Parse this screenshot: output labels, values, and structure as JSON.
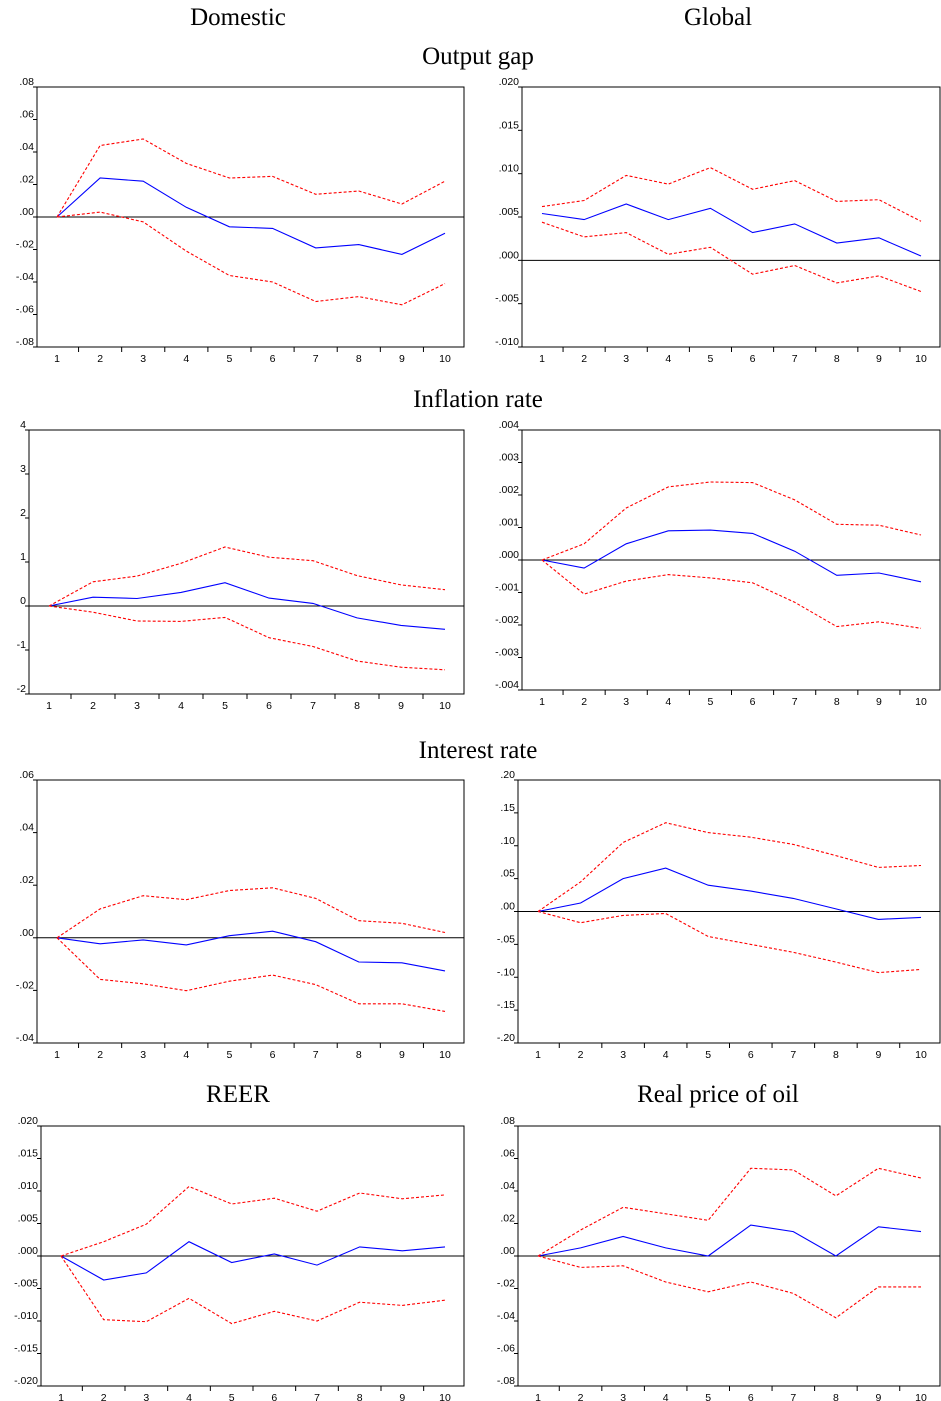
{
  "columns": {
    "left": "Domestic",
    "right": "Global"
  },
  "rows": {
    "output_gap": "Output gap",
    "inflation": "Inflation rate",
    "interest": "Interest rate",
    "reer": "REER",
    "oil": "Real price of oil"
  },
  "colors": {
    "response": "#0000ff",
    "band": "#ff0000",
    "zero_line": "#000000"
  },
  "chart_data": [
    {
      "id": "dom_output",
      "type": "line",
      "title": "",
      "x": [
        1,
        2,
        3,
        4,
        5,
        6,
        7,
        8,
        9,
        10
      ],
      "ylim": [
        -0.08,
        0.08
      ],
      "ytick_values": [
        -0.08,
        -0.06,
        -0.04,
        -0.02,
        0,
        0.02,
        0.04,
        0.06,
        0.08
      ],
      "yticks": [
        ".08",
        ".06",
        ".04",
        ".02",
        ".00",
        "-.02",
        "-.04",
        "-.06",
        "-.08"
      ],
      "series": [
        {
          "role": "response",
          "values": [
            0.0,
            0.024,
            0.022,
            0.006,
            -0.006,
            -0.007,
            -0.019,
            -0.017,
            -0.023,
            -0.01
          ]
        },
        {
          "role": "upper",
          "values": [
            0.0,
            0.044,
            0.048,
            0.033,
            0.024,
            0.025,
            0.014,
            0.016,
            0.008,
            0.022
          ]
        },
        {
          "role": "lower",
          "values": [
            0.0,
            0.003,
            -0.003,
            -0.021,
            -0.036,
            -0.04,
            -0.052,
            -0.049,
            -0.054,
            -0.041
          ]
        }
      ]
    },
    {
      "id": "glob_output",
      "type": "line",
      "title": "",
      "x": [
        1,
        2,
        3,
        4,
        5,
        6,
        7,
        8,
        9,
        10
      ],
      "ylim": [
        -0.01,
        0.02
      ],
      "ytick_values": [
        -0.01,
        -0.005,
        0,
        0.005,
        0.01,
        0.015,
        0.02
      ],
      "yticks": [
        ".020",
        ".015",
        ".010",
        ".005",
        ".000",
        "-.005",
        "-.010"
      ],
      "series": [
        {
          "role": "response",
          "values": [
            0.0054,
            0.0047,
            0.0065,
            0.0047,
            0.006,
            0.0032,
            0.0042,
            0.002,
            0.0026,
            0.0005
          ]
        },
        {
          "role": "upper",
          "values": [
            0.0062,
            0.0069,
            0.0098,
            0.0088,
            0.0107,
            0.0082,
            0.0092,
            0.0068,
            0.007,
            0.0045
          ]
        },
        {
          "role": "lower",
          "values": [
            0.0044,
            0.0027,
            0.0032,
            0.0007,
            0.0015,
            -0.0016,
            -0.0006,
            -0.0026,
            -0.0018,
            -0.0036
          ]
        }
      ]
    },
    {
      "id": "dom_inflation",
      "type": "line",
      "title": "",
      "x": [
        1,
        2,
        3,
        4,
        5,
        6,
        7,
        8,
        9,
        10
      ],
      "ylim": [
        -2,
        4
      ],
      "ytick_values": [
        -2,
        -1,
        0,
        1,
        2,
        3,
        4
      ],
      "yticks": [
        "4",
        "3",
        "2",
        "1",
        "0",
        "-1",
        "-2"
      ],
      "series": [
        {
          "role": "response",
          "values": [
            0.0,
            0.2,
            0.17,
            0.31,
            0.53,
            0.18,
            0.06,
            -0.27,
            -0.44,
            -0.53
          ]
        },
        {
          "role": "upper",
          "values": [
            0.0,
            0.55,
            0.68,
            0.97,
            1.34,
            1.11,
            1.03,
            0.69,
            0.48,
            0.37
          ]
        },
        {
          "role": "lower",
          "values": [
            0.0,
            -0.14,
            -0.34,
            -0.35,
            -0.26,
            -0.72,
            -0.92,
            -1.25,
            -1.39,
            -1.45
          ]
        }
      ]
    },
    {
      "id": "glob_inflation",
      "type": "line",
      "title": "",
      "x": [
        1,
        2,
        3,
        4,
        5,
        6,
        7,
        8,
        9,
        10
      ],
      "ylim": [
        -0.004,
        0.004
      ],
      "ytick_values": [
        -0.004,
        -0.003,
        -0.002,
        -0.001,
        0,
        0.001,
        0.002,
        0.003,
        0.004
      ],
      "yticks": [
        ".004",
        ".003",
        ".002",
        ".001",
        ".000",
        "-.001",
        "-.002",
        "-.003",
        "-.004"
      ],
      "series": [
        {
          "role": "response",
          "values": [
            0.0,
            -0.00025,
            0.0005,
            0.0009,
            0.00092,
            0.00082,
            0.00027,
            -0.00047,
            -0.0004,
            -0.00067
          ]
        },
        {
          "role": "upper",
          "values": [
            0.0,
            0.0005,
            0.0016,
            0.00225,
            0.0024,
            0.00238,
            0.00185,
            0.0011,
            0.00107,
            0.00077
          ]
        },
        {
          "role": "lower",
          "values": [
            0.0,
            -0.00105,
            -0.00065,
            -0.00045,
            -0.00055,
            -0.0007,
            -0.0013,
            -0.00205,
            -0.0019,
            -0.0021
          ]
        }
      ]
    },
    {
      "id": "dom_interest",
      "type": "line",
      "title": "",
      "x": [
        1,
        2,
        3,
        4,
        5,
        6,
        7,
        8,
        9,
        10
      ],
      "ylim": [
        -0.04,
        0.06
      ],
      "ytick_values": [
        -0.04,
        -0.02,
        0,
        0.02,
        0.04,
        0.06
      ],
      "yticks": [
        ".06",
        ".04",
        ".02",
        ".00",
        "-.02",
        "-.04"
      ],
      "series": [
        {
          "role": "response",
          "values": [
            0.0,
            -0.0023,
            -0.0008,
            -0.0027,
            0.0008,
            0.0025,
            -0.0015,
            -0.0092,
            -0.0095,
            -0.0126
          ]
        },
        {
          "role": "upper",
          "values": [
            0.0,
            0.011,
            0.016,
            0.0145,
            0.018,
            0.019,
            0.015,
            0.0065,
            0.0055,
            0.002
          ]
        },
        {
          "role": "lower",
          "values": [
            0.0,
            -0.0158,
            -0.0175,
            -0.0201,
            -0.0165,
            -0.0142,
            -0.0178,
            -0.0251,
            -0.0251,
            -0.028
          ]
        }
      ]
    },
    {
      "id": "glob_interest",
      "type": "line",
      "title": "",
      "x": [
        1,
        2,
        3,
        4,
        5,
        6,
        7,
        8,
        9,
        10
      ],
      "ylim": [
        -0.2,
        0.2
      ],
      "ytick_values": [
        -0.2,
        -0.15,
        -0.1,
        -0.05,
        0,
        0.05,
        0.1,
        0.15,
        0.2
      ],
      "yticks": [
        ".20",
        ".15",
        ".10",
        ".05",
        ".00",
        "-.05",
        "-.10",
        "-.15",
        "-.20"
      ],
      "series": [
        {
          "role": "response",
          "values": [
            0.0,
            0.013,
            0.05,
            0.066,
            0.04,
            0.031,
            0.02,
            0.004,
            -0.012,
            -0.009
          ]
        },
        {
          "role": "upper",
          "values": [
            0.0,
            0.045,
            0.105,
            0.135,
            0.12,
            0.113,
            0.102,
            0.085,
            0.067,
            0.07
          ]
        },
        {
          "role": "lower",
          "values": [
            0.0,
            -0.017,
            -0.006,
            -0.003,
            -0.038,
            -0.05,
            -0.062,
            -0.077,
            -0.093,
            -0.088
          ]
        }
      ]
    },
    {
      "id": "dom_reer",
      "type": "line",
      "title": "",
      "x": [
        1,
        2,
        3,
        4,
        5,
        6,
        7,
        8,
        9,
        10
      ],
      "ylim": [
        -0.02,
        0.02
      ],
      "ytick_values": [
        -0.02,
        -0.015,
        -0.01,
        -0.005,
        0,
        0.005,
        0.01,
        0.015,
        0.02
      ],
      "yticks": [
        ".020",
        ".015",
        ".010",
        ".005",
        ".000",
        "-.005",
        "-.010",
        "-.015",
        "-.020"
      ],
      "series": [
        {
          "role": "response",
          "values": [
            0.0,
            -0.0037,
            -0.0026,
            0.0022,
            -0.001,
            0.0003,
            -0.0014,
            0.0014,
            0.0008,
            0.0014
          ]
        },
        {
          "role": "upper",
          "values": [
            0.0,
            0.0022,
            0.0049,
            0.0107,
            0.008,
            0.0089,
            0.0069,
            0.0097,
            0.0088,
            0.0094
          ]
        },
        {
          "role": "lower",
          "values": [
            0.0,
            -0.0098,
            -0.0101,
            -0.0065,
            -0.0104,
            -0.0085,
            -0.01,
            -0.0071,
            -0.0076,
            -0.0068
          ]
        }
      ]
    },
    {
      "id": "glob_oil",
      "type": "line",
      "title": "",
      "x": [
        1,
        2,
        3,
        4,
        5,
        6,
        7,
        8,
        9,
        10
      ],
      "ylim": [
        -0.08,
        0.08
      ],
      "ytick_values": [
        -0.08,
        -0.06,
        -0.04,
        -0.02,
        0,
        0.02,
        0.04,
        0.06,
        0.08
      ],
      "yticks": [
        ".08",
        ".06",
        ".04",
        ".02",
        ".00",
        "-.02",
        "-.04",
        "-.06",
        "-.08"
      ],
      "series": [
        {
          "role": "response",
          "values": [
            0.0,
            0.005,
            0.012,
            0.005,
            0.0,
            0.019,
            0.015,
            0.0,
            0.018,
            0.015
          ]
        },
        {
          "role": "upper",
          "values": [
            0.0,
            0.016,
            0.03,
            0.026,
            0.022,
            0.054,
            0.053,
            0.037,
            0.054,
            0.048
          ]
        },
        {
          "role": "lower",
          "values": [
            0.0,
            -0.007,
            -0.006,
            -0.016,
            -0.022,
            -0.016,
            -0.023,
            -0.038,
            -0.019,
            -0.019
          ]
        }
      ]
    }
  ]
}
